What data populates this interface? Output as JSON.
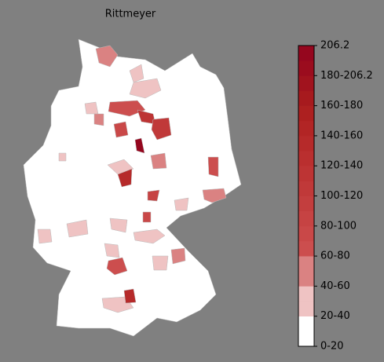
{
  "title": "Rittmeyer",
  "colorbar": {
    "labels": [
      "0-20",
      "20-40",
      "40-60",
      "60-80",
      "80-100",
      "100-120",
      "120-140",
      "140-160",
      "160-180",
      "180-206.2",
      "206.2"
    ],
    "colors": [
      "#ffffff",
      "#ffffff",
      "#efc3c3",
      "#efc3c3",
      "#da8282",
      "#da8282",
      "#cc4e4e",
      "#c94848",
      "#c64343",
      "#c33e3e",
      "#c03939",
      "#bd3434",
      "#ba2f2f",
      "#b62a2a",
      "#b22525",
      "#ad2020",
      "#a71a1e",
      "#a1131e",
      "#9b0c1e",
      "#95061e"
    ]
  }
}
